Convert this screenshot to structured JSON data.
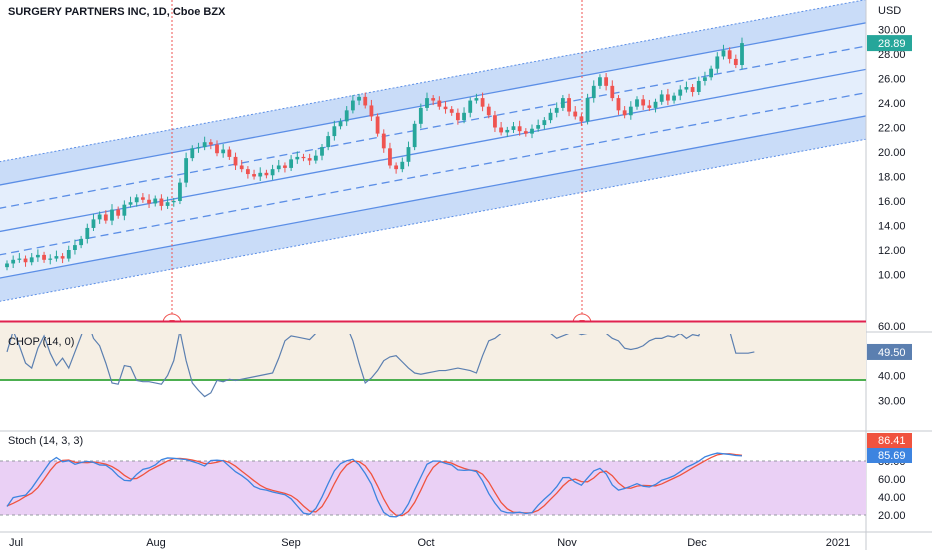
{
  "header": {
    "title": "SURGERY PARTNERS INC, 1D, Cboe BZX",
    "currency": "USD"
  },
  "colors": {
    "up": "#26a69a",
    "down": "#ef5350",
    "channel_line": "#5b8ee6",
    "channel_fill": "#dbe8fb",
    "price_badge": "#26a69a",
    "chop_upper": "#e0224f",
    "chop_lower": "#4caf50",
    "chop_line": "#5b7fb0",
    "chop_band": "#f6efe4",
    "stoch_band": "#ead0f5",
    "stoch_k": "#3d84e0",
    "stoch_d": "#f0533f",
    "earnings": "#ef5350"
  },
  "chart_data": [
    {
      "type": "candlestick",
      "title": "SURGERY PARTNERS INC, 1D, Cboe BZX",
      "ylabel": "USD",
      "ylim": [
        9.0,
        31.0
      ],
      "yticks": [
        "10.00",
        "12.00",
        "14.00",
        "16.00",
        "18.00",
        "20.00",
        "22.00",
        "24.00",
        "26.00",
        "28.00",
        "30.00"
      ],
      "last_price": "28.89",
      "x_labels": [
        "Jul",
        "Aug",
        "Sep",
        "Oct",
        "Nov",
        "Dec",
        "2021"
      ],
      "earnings_markers": [
        "E",
        "E"
      ],
      "closes": [
        10.9,
        11.2,
        11.3,
        11.0,
        11.4,
        11.6,
        11.2,
        11.3,
        11.5,
        11.3,
        12.0,
        12.4,
        12.9,
        13.8,
        14.5,
        14.9,
        14.4,
        15.3,
        14.8,
        15.7,
        15.9,
        16.3,
        16.1,
        15.8,
        16.2,
        15.6,
        15.9,
        16.0,
        17.5,
        19.5,
        20.3,
        20.4,
        20.8,
        20.6,
        19.9,
        20.2,
        19.6,
        18.9,
        18.6,
        18.2,
        18.0,
        18.3,
        18.1,
        18.6,
        18.9,
        18.7,
        19.4,
        19.6,
        19.5,
        19.3,
        19.7,
        20.4,
        21.3,
        22.1,
        22.5,
        23.4,
        24.2,
        24.5,
        23.8,
        22.9,
        21.5,
        20.3,
        18.9,
        18.6,
        19.2,
        20.4,
        22.3,
        23.6,
        24.4,
        24.2,
        23.7,
        23.5,
        23.2,
        22.6,
        23.2,
        24.2,
        24.4,
        23.7,
        23.0,
        22.0,
        21.6,
        21.8,
        22.1,
        21.7,
        21.5,
        21.9,
        22.2,
        22.6,
        23.2,
        23.6,
        24.4,
        23.3,
        22.9,
        22.5,
        24.4,
        25.4,
        26.1,
        25.4,
        24.4,
        23.4,
        23.0,
        23.7,
        24.3,
        23.8,
        23.6,
        24.1,
        24.7,
        24.2,
        24.6,
        25.1,
        25.3,
        24.9,
        25.8,
        26.1,
        26.8,
        27.8,
        28.3,
        27.6,
        27.1,
        28.89
      ],
      "channel": {
        "lines": "linear regression channel, 7 parallel lines",
        "start_center": 13.62,
        "end_center": 24.85
      }
    },
    {
      "type": "line",
      "title": "CHOP (14, 0)",
      "ylim": [
        30.0,
        65.0
      ],
      "yticks": [
        "30.00",
        "40.00",
        "60.00"
      ],
      "upper_band": 61.8,
      "lower_band": 38.2,
      "last_value": "49.50",
      "values": [
        49.5,
        58.0,
        52.0,
        45.0,
        43.0,
        51.0,
        56.0,
        49.0,
        44.0,
        47.0,
        43.0,
        49.5,
        56.0,
        62.5,
        55.0,
        52.0,
        45.0,
        37.0,
        36.5,
        44.0,
        43.5,
        38.0,
        37.5,
        37.5,
        37.0,
        36.5,
        40.0,
        46.0,
        58.0,
        46.0,
        37.0,
        34.0,
        31.5,
        33.0,
        38.0,
        37.5,
        38.5,
        38.0,
        38.5,
        39.0,
        39.5,
        40.0,
        40.5,
        41.0,
        47.0,
        54.0,
        56.0,
        55.5,
        55.0,
        54.5,
        57.0,
        61.0,
        62.0,
        62.5,
        62.0,
        60.0,
        54.0,
        45.0,
        37.0,
        39.0,
        42.0,
        46.0,
        47.5,
        48.0,
        45.5,
        43.0,
        41.0,
        40.5,
        41.0,
        41.5,
        42.0,
        42.0,
        42.5,
        43.0,
        42.5,
        42.0,
        41.0,
        48.0,
        54.0,
        55.0,
        57.0,
        60.0,
        67.0,
        61.0,
        60.0,
        58.5,
        57.5,
        58.0,
        57.0,
        55.0,
        56.0,
        57.0,
        57.5,
        56.5,
        57.0,
        58.0,
        59.0,
        57.0,
        55.0,
        54.0,
        51.0,
        50.5,
        51.0,
        52.0,
        54.0,
        55.0,
        55.0,
        56.0,
        55.5,
        57.0,
        55.0,
        56.5,
        56.0,
        64.0,
        59.0,
        60.0,
        59.0,
        58.0,
        49.0,
        49.0,
        49.0,
        49.5
      ]
    },
    {
      "type": "line",
      "title": "Stoch (14, 3, 3)",
      "ylim": [
        10.0,
        95.0
      ],
      "yticks": [
        "20.00",
        "40.00",
        "60.00",
        "80.00"
      ],
      "upper_band": 80,
      "lower_band": 20,
      "series": [
        {
          "name": "%K",
          "last": "85.69",
          "values": [
            29.5,
            39.3,
            40.8,
            42.0,
            49.8,
            59.7,
            69.5,
            79.2,
            83.9,
            79.1,
            80.3,
            76.3,
            78.3,
            79.6,
            78.5,
            75.6,
            75.3,
            70.5,
            63.4,
            58.5,
            58.0,
            65.2,
            70.7,
            72.3,
            75.6,
            81.4,
            83.4,
            83.0,
            82.2,
            81.5,
            79.5,
            77.3,
            74.4,
            80.6,
            80.9,
            80.3,
            74.1,
            68.1,
            63.8,
            58.6,
            51.7,
            48.8,
            47.6,
            45.5,
            44.0,
            42.5,
            38.0,
            30.0,
            22.1,
            20.8,
            27.3,
            40.1,
            55.0,
            69.1,
            77.1,
            80.3,
            81.9,
            75.9,
            66.1,
            54.3,
            36.3,
            22.8,
            18.3,
            18.0,
            21.5,
            32.5,
            48.0,
            62.2,
            76.4,
            80.0,
            79.9,
            77.3,
            75.6,
            70.1,
            69.6,
            70.0,
            68.2,
            57.7,
            43.8,
            33.2,
            24.6,
            22.5,
            22.3,
            23.1,
            21.7,
            22.6,
            30.9,
            37.6,
            43.7,
            51.4,
            61.5,
            61.7,
            56.4,
            53.1,
            61.2,
            69.0,
            71.8,
            65.7,
            53.4,
            47.6,
            49.5,
            52.0,
            54.8,
            52.0,
            51.1,
            53.9,
            58.6,
            60.8,
            63.6,
            68.1,
            73.0,
            76.1,
            79.8,
            84.6,
            86.9,
            88.8,
            88.0,
            87.3,
            86.1,
            85.69
          ]
        },
        {
          "name": "%D",
          "last": "86.41",
          "values": [
            30.0,
            33.0,
            36.5,
            40.7,
            44.2,
            50.5,
            59.7,
            69.5,
            77.5,
            80.7,
            81.1,
            78.6,
            78.3,
            78.1,
            78.8,
            77.9,
            76.5,
            73.8,
            69.7,
            64.1,
            60.0,
            60.6,
            64.6,
            69.4,
            72.9,
            76.4,
            80.1,
            82.6,
            82.9,
            82.2,
            81.1,
            79.4,
            77.1,
            77.4,
            78.6,
            80.6,
            78.4,
            74.2,
            68.7,
            63.5,
            58.0,
            53.0,
            49.4,
            47.3,
            45.7,
            44.0,
            41.5,
            36.8,
            30.0,
            24.3,
            23.4,
            29.4,
            40.8,
            54.7,
            67.1,
            75.5,
            79.8,
            79.4,
            74.6,
            65.4,
            52.2,
            37.8,
            25.8,
            19.7,
            19.3,
            24.0,
            34.0,
            47.6,
            62.2,
            72.9,
            78.8,
            79.1,
            77.6,
            74.3,
            71.8,
            69.9,
            69.3,
            65.3,
            56.6,
            44.9,
            33.9,
            26.8,
            23.1,
            22.6,
            22.4,
            22.5,
            25.1,
            30.4,
            37.4,
            44.2,
            52.2,
            58.2,
            59.9,
            57.1,
            56.9,
            61.1,
            67.3,
            68.8,
            63.6,
            55.6,
            50.2,
            49.7,
            52.1,
            52.9,
            52.6,
            52.3,
            54.5,
            57.8,
            61.0,
            64.2,
            68.2,
            72.4,
            76.3,
            80.2,
            83.8,
            86.8,
            87.9,
            88.0,
            87.1,
            86.41
          ]
        }
      ]
    }
  ]
}
